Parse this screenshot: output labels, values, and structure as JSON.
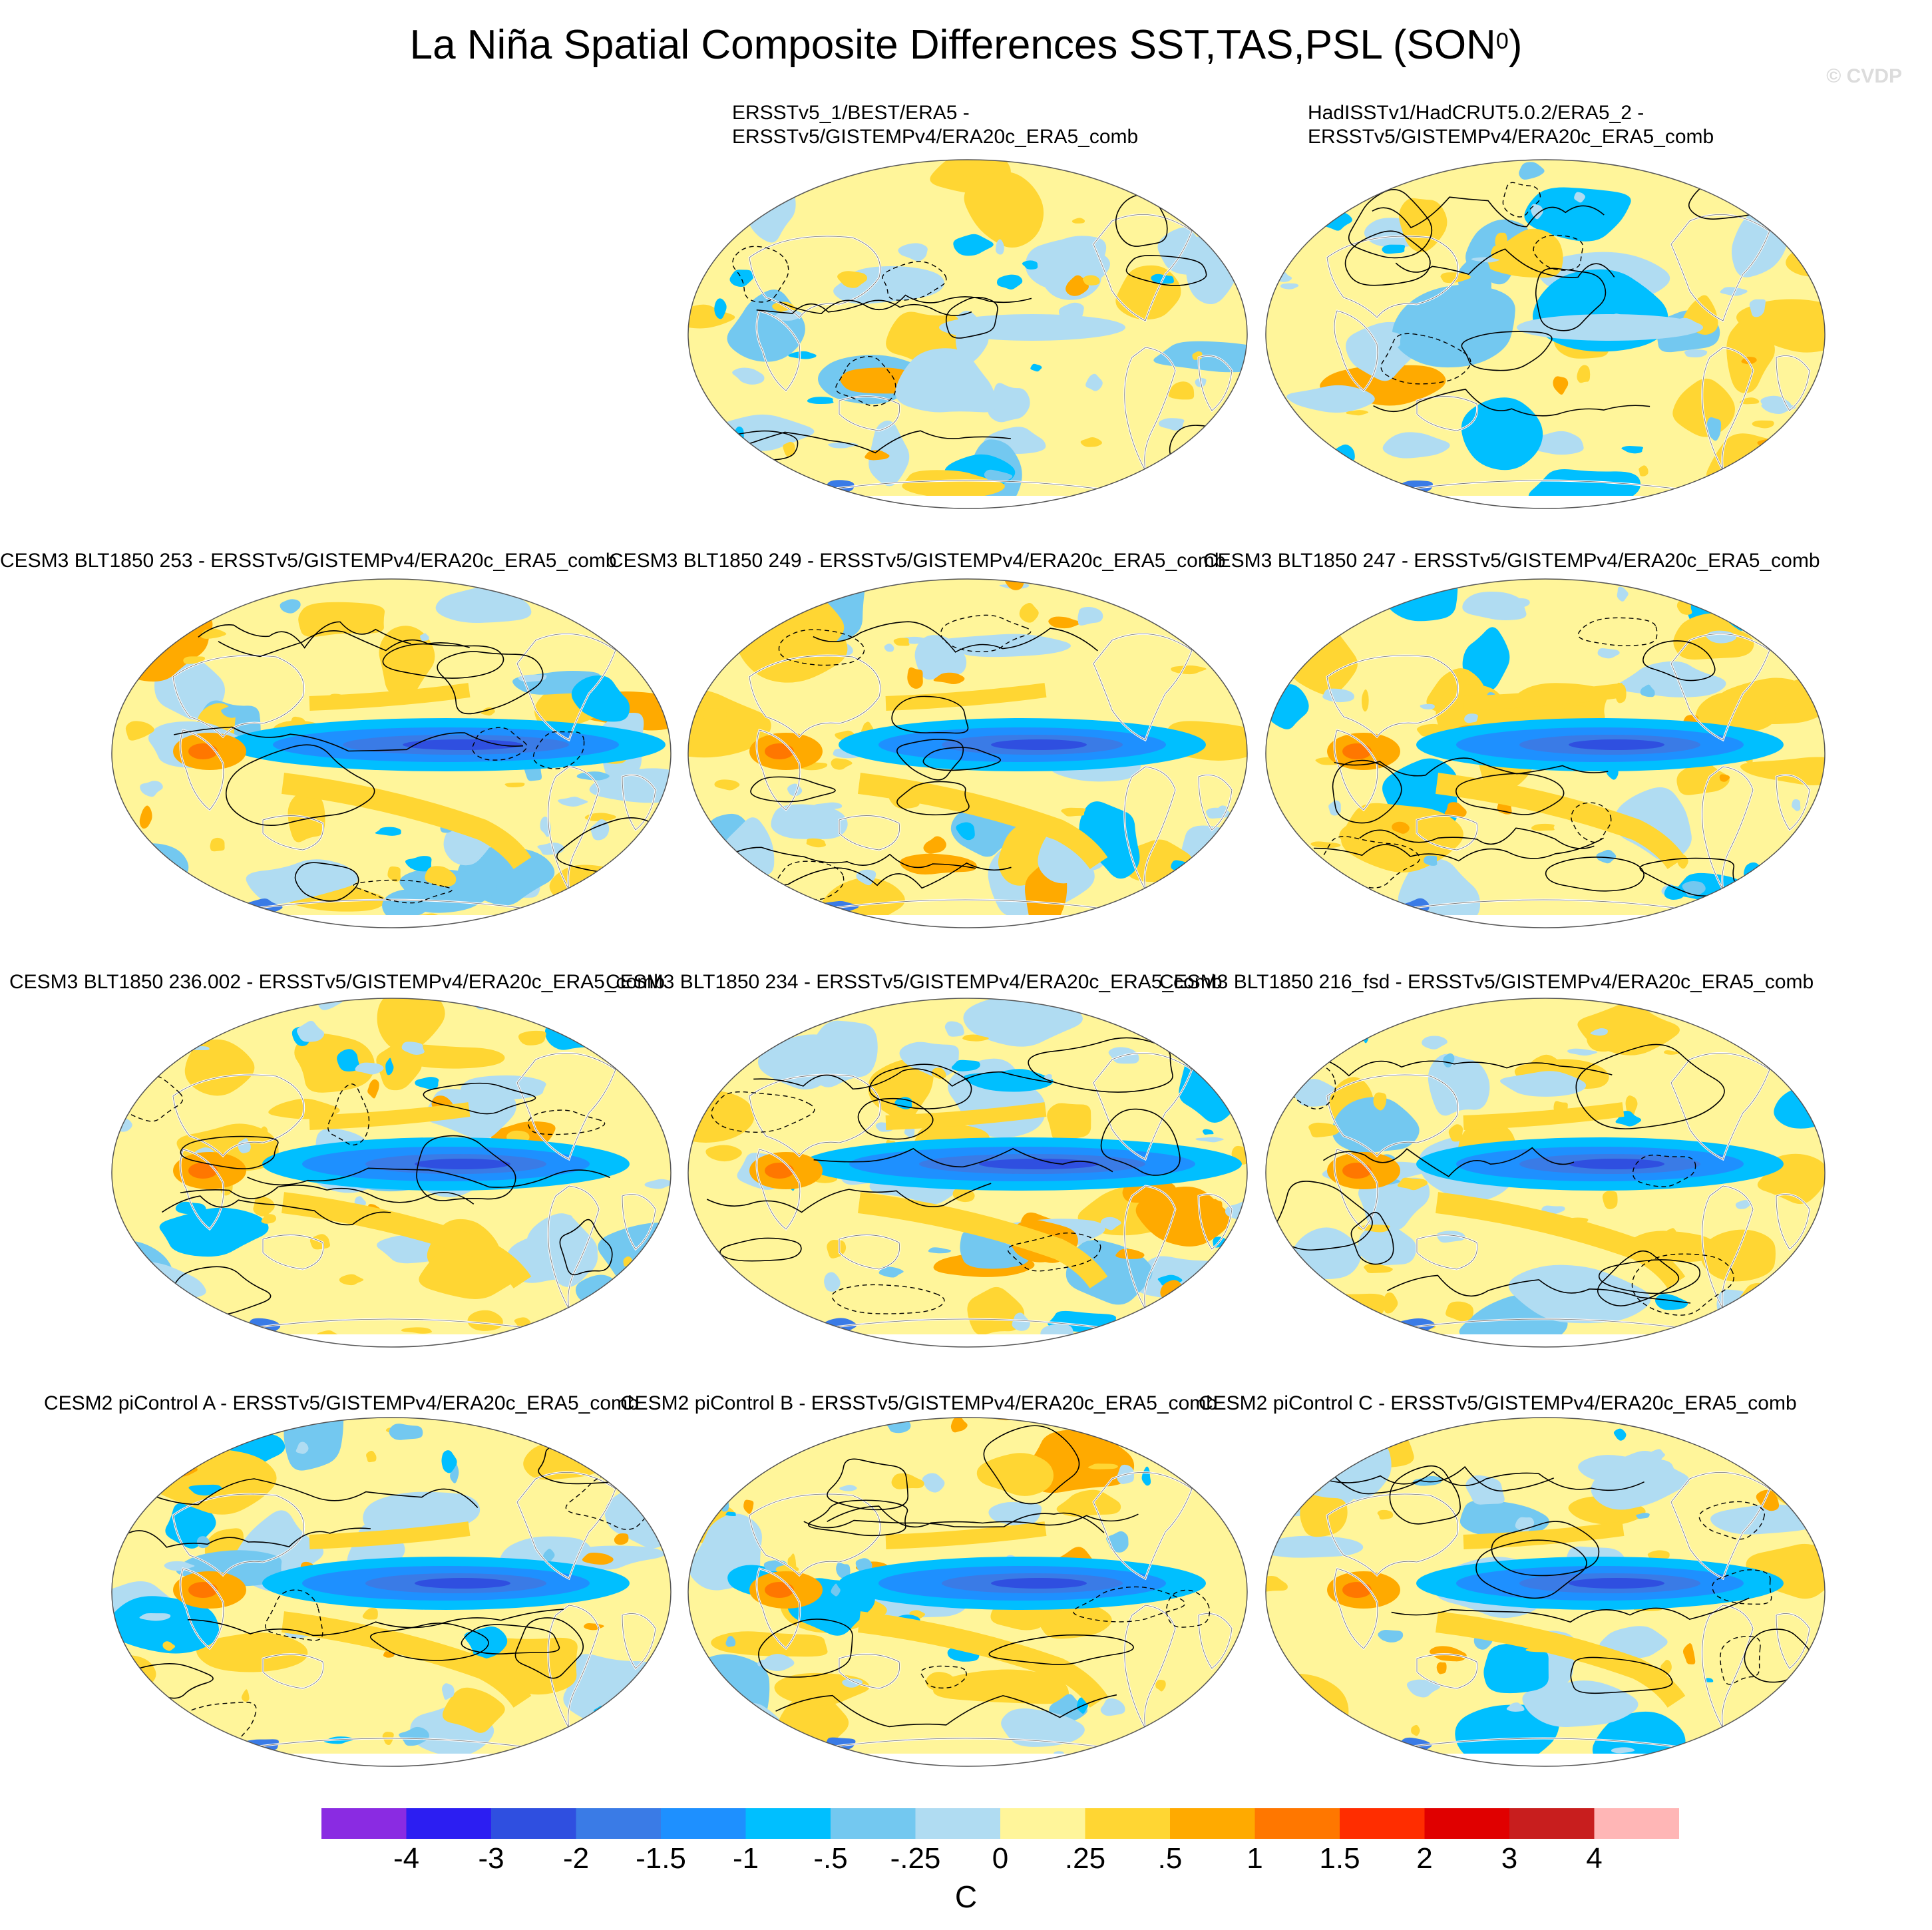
{
  "figure": {
    "title_main": "La Niña Spatial Composite Differences SST,TAS,PSL (SON",
    "title_sup": "0",
    "title_close": ")",
    "watermark": "© CVDP"
  },
  "panels": [
    {
      "title_lines": [
        "ERSSTv5_1/BEST/ERA5 -",
        "ERSSTv5/GISTEMPv4/ERA20c_ERA5_comb"
      ],
      "seed": 11,
      "nino": "weak"
    },
    {
      "title_lines": [
        "HadISSTv1/HadCRUT5.0.2/ERA5_2 -",
        "ERSSTv5/GISTEMPv4/ERA20c_ERA5_comb"
      ],
      "seed": 23,
      "nino": "weak"
    },
    {
      "title_lines": [
        "CESM3 BLT1850 253 - ERSSTv5/GISTEMPv4/ERA20c_ERA5_comb"
      ],
      "seed": 37,
      "nino": "strong"
    },
    {
      "title_lines": [
        "CESM3 BLT1850 249 - ERSSTv5/GISTEMPv4/ERA20c_ERA5_comb"
      ],
      "seed": 41,
      "nino": "medium"
    },
    {
      "title_lines": [
        "CESM3 BLT1850 247 - ERSSTv5/GISTEMPv4/ERA20c_ERA5_comb"
      ],
      "seed": 53,
      "nino": "medium"
    },
    {
      "title_lines": [
        "CESM3 BLT1850 236.002 - ERSSTv5/GISTEMPv4/ERA20c_ERA5_comb"
      ],
      "seed": 67,
      "nino": "medium"
    },
    {
      "title_lines": [
        "CESM3 BLT1850 234 - ERSSTv5/GISTEMPv4/ERA20c_ERA5_comb"
      ],
      "seed": 71,
      "nino": "strong"
    },
    {
      "title_lines": [
        "CESM3 BLT1850 216_fsd - ERSSTv5/GISTEMPv4/ERA20c_ERA5_comb"
      ],
      "seed": 83,
      "nino": "medium"
    },
    {
      "title_lines": [
        "CESM2 piControl A - ERSSTv5/GISTEMPv4/ERA20c_ERA5_comb"
      ],
      "seed": 97,
      "nino": "medium"
    },
    {
      "title_lines": [
        "CESM2 piControl B - ERSSTv5/GISTEMPv4/ERA20c_ERA5_comb"
      ],
      "seed": 101,
      "nino": "medium"
    },
    {
      "title_lines": [
        "CESM2 piControl C - ERSSTv5/GISTEMPv4/ERA20c_ERA5_comb"
      ],
      "seed": 113,
      "nino": "medium"
    }
  ],
  "colorbar": {
    "colors": [
      "#8a2be2",
      "#2c1ef2",
      "#2f4fe0",
      "#3a7be6",
      "#1e90ff",
      "#00bfff",
      "#73c8f0",
      "#b0dcf2",
      "#fff59a",
      "#ffd633",
      "#ffaa00",
      "#ff7700",
      "#ff2d00",
      "#e00000",
      "#c81e1e",
      "#ffb6b6"
    ],
    "labels": [
      "-4",
      "-3",
      "-2",
      "-1.5",
      "-1",
      "-.5",
      "-.25",
      "0",
      ".25",
      ".5",
      "1",
      "1.5",
      "2",
      "3",
      "4"
    ],
    "unit": "C"
  }
}
